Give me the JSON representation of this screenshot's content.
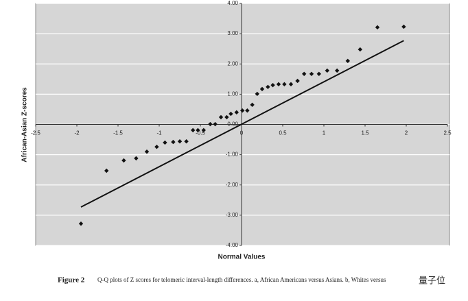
{
  "chart_data": {
    "type": "scatter",
    "xlabel": "Normal Values",
    "ylabel": "African-Asian Z-scores",
    "caption_label": "Figure 2",
    "caption": "Q-Q plots of Z scores for telomeric interval-length differences. a, African Americans versus Asians. b, Whites versus",
    "watermark": "量子位",
    "xlim": [
      -2.5,
      2.5
    ],
    "ylim": [
      -4,
      4
    ],
    "xticks": [
      -2.5,
      -2,
      -1.5,
      -1,
      -0.5,
      0,
      0.5,
      1,
      1.5,
      2,
      2.5
    ],
    "yticks": [
      {
        "value": 4,
        "label": "4.00"
      },
      {
        "value": 3,
        "label": "3.00"
      },
      {
        "value": 2,
        "label": "2.00"
      },
      {
        "value": 1,
        "label": "1.00"
      },
      {
        "value": 0,
        "label": "0.00"
      },
      {
        "value": -1,
        "label": "-1.00"
      },
      {
        "value": -2,
        "label": "-2.00"
      },
      {
        "value": -3,
        "label": "-3.00"
      },
      {
        "value": -4,
        "label": "-4.00"
      }
    ],
    "grid": true,
    "series": [
      {
        "color": "#111111",
        "x": [
          -1.95,
          -1.64,
          -1.43,
          -1.28,
          -1.15,
          -1.03,
          -0.93,
          -0.83,
          -0.75,
          -0.67,
          -0.59,
          -0.53,
          -0.46,
          -0.38,
          -0.32,
          -0.25,
          -0.18,
          -0.13,
          -0.06,
          0.01,
          0.07,
          0.13,
          0.19,
          0.25,
          0.32,
          0.38,
          0.45,
          0.52,
          0.6,
          0.68,
          0.76,
          0.85,
          0.94,
          1.04,
          1.16,
          1.29,
          1.44,
          1.65,
          1.97
        ],
        "values": [
          -3.28,
          -1.53,
          -1.19,
          -1.12,
          -0.9,
          -0.74,
          -0.6,
          -0.58,
          -0.56,
          -0.56,
          -0.19,
          -0.19,
          -0.19,
          0.01,
          0.01,
          0.24,
          0.24,
          0.35,
          0.4,
          0.46,
          0.46,
          0.65,
          1.01,
          1.17,
          1.24,
          1.3,
          1.33,
          1.33,
          1.33,
          1.44,
          1.67,
          1.67,
          1.67,
          1.78,
          1.78,
          2.1,
          2.48,
          3.21,
          3.23
        ]
      }
    ],
    "reference_line": {
      "color": "#111111",
      "x": [
        -1.95,
        1.97
      ],
      "values": [
        -2.73,
        2.77
      ]
    }
  }
}
